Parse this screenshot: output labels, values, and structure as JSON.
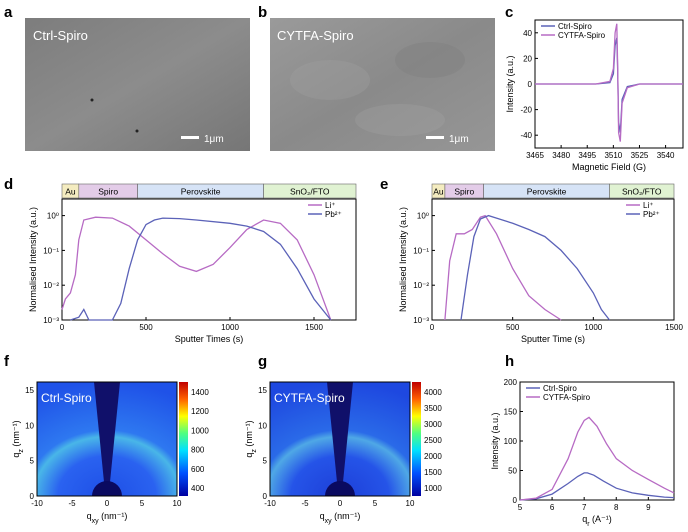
{
  "panel_labels": [
    "a",
    "b",
    "c",
    "d",
    "e",
    "f",
    "g",
    "h"
  ],
  "sem": {
    "a_label": "Ctrl-Spiro",
    "b_label": "CYTFA-Spiro",
    "scale": "1μm"
  },
  "gixd": {
    "f_label": "Ctrl-Spiro",
    "g_label": "CYTFA-Spiro",
    "xlabel": "q",
    "xlabel_sub": "xy",
    "xlabel_unit": " (nm⁻¹)",
    "ylabel": "q",
    "ylabel_sub": "z",
    "ylabel_unit": " (nm⁻¹)"
  },
  "chart_data": [
    {
      "id": "c",
      "type": "line",
      "xlabel": "Magnetic Field (G)",
      "ylabel": "Intensity (a.u.)",
      "xlim": [
        3465,
        3550
      ],
      "ylim": [
        -50,
        50
      ],
      "xticks": [
        "3465",
        "3480",
        "3495",
        "3510",
        "3525",
        "3540"
      ],
      "yticks": [
        "-40",
        "-20",
        "0",
        "20",
        "40"
      ],
      "legend": "top-left",
      "series": [
        {
          "name": "Ctrl-Spiro",
          "color": "#5b62b8",
          "x": [
            3465,
            3500,
            3508,
            3510,
            3511,
            3512,
            3512.5,
            3513,
            3514,
            3515,
            3518,
            3525,
            3550
          ],
          "y": [
            0,
            0,
            1,
            8,
            30,
            36,
            10,
            -30,
            -38,
            -12,
            -2,
            0,
            0
          ]
        },
        {
          "name": "CYTFA-Spiro",
          "color": "#b76bc4",
          "x": [
            3465,
            3500,
            3508,
            3510,
            3511,
            3512,
            3512.5,
            3513,
            3514,
            3515,
            3518,
            3525,
            3550
          ],
          "y": [
            0,
            0,
            2,
            12,
            40,
            47,
            12,
            -38,
            -45,
            -15,
            -3,
            0,
            0
          ]
        }
      ]
    },
    {
      "id": "d",
      "type": "line",
      "ylog": true,
      "xlabel": "Sputter Times (s)",
      "ylabel": "Normalised Intensity (a.u.)",
      "xlim": [
        0,
        1750
      ],
      "ylim": [
        0.001,
        3
      ],
      "xticks": [
        "0",
        "500",
        "1000",
        "1500"
      ],
      "yticks": [
        "10⁻³",
        "10⁻²",
        "10⁻¹",
        "10⁰"
      ],
      "layers": [
        {
          "name": "Au",
          "x0": 0,
          "x1": 100,
          "color": "#f4ecc0"
        },
        {
          "name": "Spiro",
          "x0": 100,
          "x1": 450,
          "color": "#e3cce8"
        },
        {
          "name": "Perovskite",
          "x0": 450,
          "x1": 1200,
          "color": "#d6e3f6"
        },
        {
          "name": "SnO₂/FTO",
          "x0": 1200,
          "x1": 1750,
          "color": "#e0f2d2"
        }
      ],
      "series": [
        {
          "name": "Li⁺",
          "color": "#b76bc4",
          "x": [
            0,
            20,
            50,
            80,
            100,
            130,
            200,
            300,
            400,
            500,
            600,
            700,
            800,
            900,
            1000,
            1100,
            1200,
            1300,
            1400,
            1500,
            1600
          ],
          "y": [
            0.002,
            0.004,
            0.006,
            0.02,
            0.2,
            0.75,
            0.9,
            0.85,
            0.5,
            0.2,
            0.08,
            0.035,
            0.025,
            0.04,
            0.12,
            0.4,
            0.75,
            0.6,
            0.2,
            0.02,
            0.001
          ]
        },
        {
          "name": "Pb²⁺",
          "color": "#5b62b8",
          "x": [
            50,
            100,
            130,
            160,
            200,
            300,
            350,
            400,
            450,
            500,
            550,
            600,
            700,
            800,
            1000,
            1100,
            1200,
            1300,
            1400,
            1500,
            1600
          ],
          "y": [
            0.001,
            0.0012,
            0.002,
            0.001,
            0.001,
            0.001,
            0.003,
            0.03,
            0.2,
            0.55,
            0.75,
            0.85,
            0.82,
            0.75,
            0.6,
            0.5,
            0.35,
            0.15,
            0.03,
            0.004,
            0.001
          ]
        }
      ]
    },
    {
      "id": "e",
      "type": "line",
      "ylog": true,
      "xlabel": "Sputter Time (s)",
      "ylabel": "Normalised Intensity (a.u.)",
      "xlim": [
        0,
        1500
      ],
      "ylim": [
        0.001,
        3
      ],
      "xticks": [
        "0",
        "500",
        "1000",
        "1500"
      ],
      "yticks": [
        "10⁻³",
        "10⁻²",
        "10⁻¹",
        "10⁰"
      ],
      "layers": [
        {
          "name": "Au",
          "x0": 0,
          "x1": 80,
          "color": "#f4ecc0"
        },
        {
          "name": "Spiro",
          "x0": 80,
          "x1": 320,
          "color": "#e3cce8"
        },
        {
          "name": "Perovskite",
          "x0": 320,
          "x1": 1100,
          "color": "#d6e3f6"
        },
        {
          "name": "SnO₂/FTO",
          "x0": 1100,
          "x1": 1500,
          "color": "#e0f2d2"
        }
      ],
      "series": [
        {
          "name": "Li⁺",
          "color": "#b76bc4",
          "x": [
            80,
            110,
            150,
            200,
            250,
            300,
            330,
            400,
            500,
            600,
            700,
            800
          ],
          "y": [
            0.001,
            0.05,
            0.3,
            0.3,
            0.4,
            0.9,
            1.0,
            0.3,
            0.03,
            0.005,
            0.002,
            0.001
          ]
        },
        {
          "name": "Pb²⁺",
          "color": "#5b62b8",
          "x": [
            180,
            220,
            260,
            300,
            350,
            400,
            500,
            600,
            700,
            800,
            900,
            1000,
            1050,
            1100
          ],
          "y": [
            0.001,
            0.02,
            0.25,
            0.8,
            1.0,
            0.85,
            0.6,
            0.4,
            0.25,
            0.1,
            0.03,
            0.006,
            0.002,
            0.001
          ]
        }
      ]
    },
    {
      "id": "f_scale",
      "type": "heatmap-colorbar",
      "ticks": [
        "1400",
        "1200",
        "1000",
        "800",
        "600",
        "400"
      ]
    },
    {
      "id": "g_scale",
      "type": "heatmap-colorbar",
      "ticks": [
        "4000",
        "3500",
        "3000",
        "2500",
        "2000",
        "1500",
        "1000"
      ]
    },
    {
      "id": "f_axes",
      "type": "heatmap",
      "xticks": [
        "-10",
        "-5",
        "0",
        "5",
        "10"
      ],
      "yticks": [
        "0",
        "5",
        "10",
        "15"
      ]
    },
    {
      "id": "h",
      "type": "line",
      "xlabel": "q",
      "xlabel_sub": "r",
      "xlabel_unit": " (A⁻¹)",
      "ylabel": "Intensity (a.u.)",
      "xlim": [
        5,
        9.8
      ],
      "ylim": [
        0,
        200
      ],
      "xticks": [
        "5",
        "6",
        "7",
        "8",
        "9"
      ],
      "yticks": [
        "0",
        "50",
        "100",
        "150",
        "200"
      ],
      "legend": "top-left",
      "series": [
        {
          "name": "Ctrl-Spiro",
          "color": "#5b62b8",
          "x": [
            5,
            5.5,
            6,
            6.5,
            6.8,
            7.0,
            7.1,
            7.3,
            7.6,
            8,
            8.5,
            9,
            9.5,
            9.8
          ],
          "y": [
            0,
            2,
            10,
            28,
            40,
            46,
            46,
            42,
            32,
            20,
            12,
            8,
            5,
            4
          ]
        },
        {
          "name": "CYTFA-Spiro",
          "color": "#b76bc4",
          "x": [
            5,
            5.5,
            6,
            6.5,
            6.8,
            7.0,
            7.15,
            7.4,
            7.7,
            8,
            8.5,
            9,
            9.5,
            9.8
          ],
          "y": [
            0,
            3,
            18,
            70,
            115,
            135,
            140,
            125,
            95,
            70,
            50,
            35,
            20,
            12
          ]
        }
      ]
    }
  ]
}
